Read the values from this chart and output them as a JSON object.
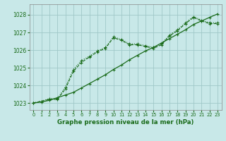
{
  "title": "Graphe pression niveau de la mer (hPa)",
  "bg_color": "#c8e8e8",
  "grid_color": "#a0c8c8",
  "line_color": "#1a6b1a",
  "xlim": [
    -0.5,
    23.5
  ],
  "ylim": [
    1022.6,
    1028.6
  ],
  "xticks": [
    0,
    1,
    2,
    3,
    4,
    5,
    6,
    7,
    8,
    9,
    10,
    11,
    12,
    13,
    14,
    15,
    16,
    17,
    18,
    19,
    20,
    21,
    22,
    23
  ],
  "yticks": [
    1023,
    1024,
    1025,
    1026,
    1027,
    1028
  ],
  "series1_x": [
    0,
    1,
    2,
    3,
    4,
    5,
    6,
    7,
    8,
    9,
    10,
    11,
    12,
    13,
    14,
    15,
    16,
    17,
    18,
    19,
    20,
    21,
    22,
    23
  ],
  "series1_y": [
    1023.0,
    1023.1,
    1023.2,
    1023.2,
    1023.8,
    1024.8,
    1025.3,
    1025.6,
    1025.9,
    1026.1,
    1026.7,
    1026.55,
    1026.3,
    1026.3,
    1026.2,
    1026.1,
    1026.3,
    1026.8,
    1027.1,
    1027.5,
    1027.85,
    1027.65,
    1027.5,
    1027.5
  ],
  "series2_x": [
    0,
    1,
    2,
    3,
    4,
    5,
    6,
    7,
    8,
    9,
    10,
    11,
    12,
    13,
    14,
    15,
    16,
    17,
    18,
    19,
    20,
    21,
    22,
    23
  ],
  "series2_y": [
    1023.0,
    1023.05,
    1023.15,
    1023.3,
    1023.45,
    1023.6,
    1023.85,
    1024.1,
    1024.35,
    1024.6,
    1024.9,
    1025.15,
    1025.45,
    1025.7,
    1025.95,
    1026.15,
    1026.4,
    1026.65,
    1026.9,
    1027.15,
    1027.45,
    1027.65,
    1027.85,
    1028.05
  ],
  "series3_x": [
    0,
    1,
    2,
    3,
    4,
    5,
    6,
    7,
    8,
    9,
    10,
    11,
    12,
    13,
    14,
    15,
    16,
    17,
    18,
    19,
    20,
    21,
    22,
    23
  ],
  "series3_y": [
    1023.0,
    1023.1,
    1023.25,
    1023.25,
    1023.9,
    1024.9,
    1025.4,
    1025.65,
    1025.95,
    1026.15,
    1026.75,
    1026.6,
    1026.35,
    1026.35,
    1026.25,
    1026.15,
    1026.35,
    1026.85,
    1027.15,
    1027.55,
    1027.9,
    1027.7,
    1027.55,
    1027.55
  ]
}
